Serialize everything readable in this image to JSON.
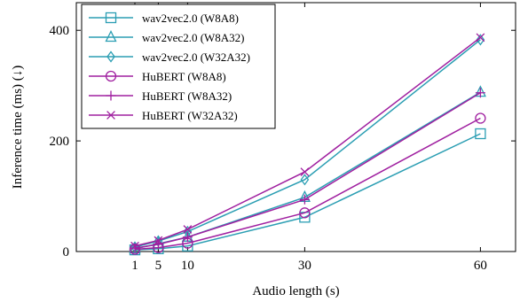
{
  "chart_data": {
    "type": "line",
    "title": "",
    "xlabel": "Audio length (s)",
    "ylabel": "Inference time (ms) (↓)",
    "x": [
      1,
      5,
      10,
      30,
      60
    ],
    "xticks": [
      1,
      5,
      10,
      30,
      60
    ],
    "xlim": [
      -9,
      66
    ],
    "yticks": [
      0,
      200,
      400
    ],
    "ylim": [
      0,
      450
    ],
    "grid": false,
    "legend_position": "top-left",
    "series": [
      {
        "name": "wav2vec2.0 (W8A8)",
        "color": "#2b9eb3",
        "marker": "square",
        "values": [
          3,
          5,
          10,
          62,
          213
        ]
      },
      {
        "name": "wav2vec2.0 (W8A32)",
        "color": "#2b9eb3",
        "marker": "triangle",
        "values": [
          5,
          14,
          26,
          98,
          288
        ]
      },
      {
        "name": "wav2vec2.0 (W32A32)",
        "color": "#2b9eb3",
        "marker": "diamond",
        "values": [
          8,
          19,
          36,
          130,
          383
        ]
      },
      {
        "name": "HuBERT (W8A8)",
        "color": "#a020a0",
        "marker": "circle",
        "values": [
          4,
          7,
          15,
          70,
          241
        ]
      },
      {
        "name": "HuBERT (W8A32)",
        "color": "#a020a0",
        "marker": "plus",
        "values": [
          6,
          13,
          26,
          94,
          287
        ]
      },
      {
        "name": "HuBERT (W32A32)",
        "color": "#a020a0",
        "marker": "cross",
        "values": [
          10,
          20,
          40,
          144,
          387
        ]
      }
    ]
  }
}
